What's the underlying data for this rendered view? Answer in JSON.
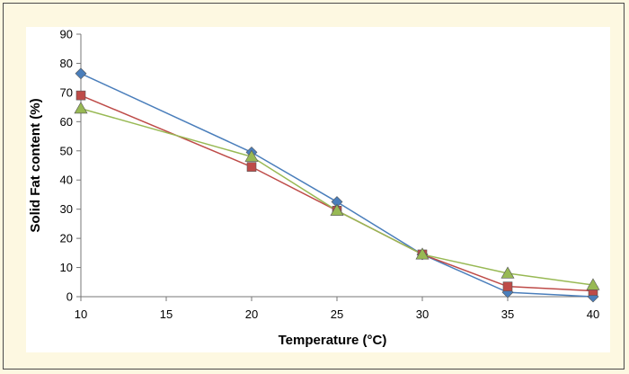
{
  "chart_data": {
    "type": "line",
    "title": "",
    "xlabel": "Temperature (°C)",
    "ylabel": "Solid Fat content (%)",
    "xlim": [
      10,
      40
    ],
    "ylim": [
      0,
      90
    ],
    "xticks": [
      10,
      15,
      20,
      25,
      30,
      35,
      40
    ],
    "yticks": [
      0,
      10,
      20,
      30,
      40,
      50,
      60,
      70,
      80,
      90
    ],
    "grid": false,
    "legend": "none",
    "x": [
      10,
      20,
      25,
      30,
      35,
      40
    ],
    "series": [
      {
        "marker": "diamond",
        "color": "#4a7ebb",
        "values": [
          76.5,
          49.5,
          32.5,
          14.5,
          1.5,
          0
        ]
      },
      {
        "marker": "square",
        "color": "#be4b48",
        "values": [
          69,
          44.5,
          29.5,
          14.5,
          3.5,
          2
        ]
      },
      {
        "marker": "triangle",
        "color": "#98b954",
        "values": [
          64.5,
          48,
          29.5,
          14.5,
          8,
          4
        ]
      }
    ]
  }
}
